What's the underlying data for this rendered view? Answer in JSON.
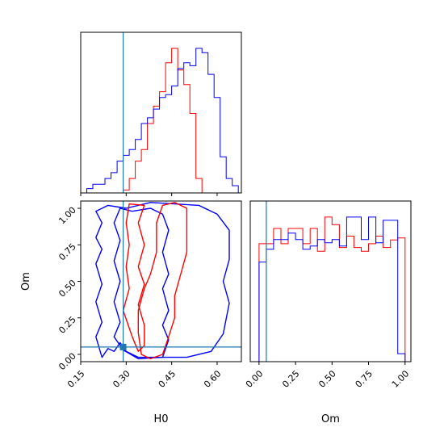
{
  "chart_data": {
    "type": "corner",
    "parameters": [
      "H0",
      "Om"
    ],
    "truth": {
      "H0": 0.29,
      "Om": 0.05
    },
    "colors": {
      "run_a": "#ff0000",
      "run_b": "#0000ff",
      "truth": "#1f77b4"
    },
    "panels": [
      {
        "id": "h0-histogram",
        "type": "histogram",
        "xlim": [
          0.15,
          0.68
        ],
        "x_edges": [
          0.15,
          0.17,
          0.19,
          0.21,
          0.23,
          0.25,
          0.27,
          0.29,
          0.31,
          0.33,
          0.35,
          0.37,
          0.39,
          0.41,
          0.43,
          0.45,
          0.47,
          0.49,
          0.51,
          0.53,
          0.55,
          0.57,
          0.59,
          0.61,
          0.63,
          0.65,
          0.67
        ],
        "series": [
          {
            "color": "#ff0000",
            "counts": [
              0,
              0,
              0,
              0,
              0,
              0,
              0,
              0.02,
              0.1,
              0.22,
              0.3,
              0.48,
              0.6,
              0.7,
              0.9,
              1.0,
              0.85,
              0.75,
              0.55,
              0.1,
              0,
              0,
              0,
              0,
              0,
              0
            ]
          },
          {
            "color": "#0000ff",
            "counts": [
              0,
              0.03,
              0.06,
              0.06,
              0.1,
              0.14,
              0.22,
              0.26,
              0.3,
              0.37,
              0.48,
              0.52,
              0.58,
              0.66,
              0.68,
              0.74,
              0.86,
              0.9,
              0.88,
              1.0,
              0.97,
              0.82,
              0.66,
              0.25,
              0.1,
              0.05
            ]
          }
        ]
      },
      {
        "id": "h0-om-contour",
        "type": "contour",
        "xlim": [
          0.15,
          0.68
        ],
        "ylim": [
          -0.05,
          1.05
        ],
        "xlabel": "H0",
        "ylabel": "Om",
        "xticks": [
          "0.15",
          "0.30",
          "0.45",
          "0.60"
        ],
        "xtick_values": [
          0.15,
          0.3,
          0.45,
          0.6
        ],
        "yticks": [
          "0.00",
          "0.25",
          "0.50",
          "0.75",
          "1.00"
        ],
        "ytick_values": [
          0.0,
          0.25,
          0.5,
          0.75,
          1.0
        ],
        "contours": [
          {
            "color": "#0000ff",
            "level": "outer",
            "points": [
              [
                0.22,
                -0.02
              ],
              [
                0.24,
                0.04
              ],
              [
                0.26,
                0.02
              ],
              [
                0.28,
                0.08
              ],
              [
                0.3,
                0.02
              ],
              [
                0.34,
                -0.02
              ],
              [
                0.42,
                -0.02
              ],
              [
                0.5,
                -0.02
              ],
              [
                0.58,
                0.02
              ],
              [
                0.62,
                0.14
              ],
              [
                0.64,
                0.35
              ],
              [
                0.62,
                0.5
              ],
              [
                0.64,
                0.65
              ],
              [
                0.64,
                0.85
              ],
              [
                0.6,
                0.96
              ],
              [
                0.54,
                1.02
              ],
              [
                0.46,
                1.03
              ],
              [
                0.38,
                1.04
              ],
              [
                0.3,
                1.0
              ],
              [
                0.24,
                1.02
              ],
              [
                0.2,
                0.98
              ],
              [
                0.22,
                0.9
              ],
              [
                0.2,
                0.8
              ],
              [
                0.22,
                0.72
              ],
              [
                0.2,
                0.62
              ],
              [
                0.22,
                0.48
              ],
              [
                0.2,
                0.36
              ],
              [
                0.22,
                0.22
              ],
              [
                0.2,
                0.12
              ],
              [
                0.22,
                -0.02
              ]
            ]
          },
          {
            "color": "#0000ff",
            "level": "inner",
            "points": [
              [
                0.29,
                0.03
              ],
              [
                0.34,
                -0.03
              ],
              [
                0.42,
                -0.02
              ],
              [
                0.44,
                0.1
              ],
              [
                0.42,
                0.2
              ],
              [
                0.44,
                0.3
              ],
              [
                0.42,
                0.45
              ],
              [
                0.44,
                0.55
              ],
              [
                0.42,
                0.7
              ],
              [
                0.44,
                0.85
              ],
              [
                0.42,
                0.96
              ],
              [
                0.38,
                1.0
              ],
              [
                0.32,
                0.98
              ],
              [
                0.28,
                1.0
              ],
              [
                0.26,
                0.9
              ],
              [
                0.28,
                0.78
              ],
              [
                0.26,
                0.64
              ],
              [
                0.28,
                0.5
              ],
              [
                0.26,
                0.36
              ],
              [
                0.28,
                0.22
              ],
              [
                0.26,
                0.12
              ],
              [
                0.29,
                0.03
              ]
            ]
          },
          {
            "color": "#ff0000",
            "level": "outer",
            "points": [
              [
                0.35,
                0.0
              ],
              [
                0.38,
                -0.03
              ],
              [
                0.42,
                0.0
              ],
              [
                0.44,
                0.12
              ],
              [
                0.46,
                0.25
              ],
              [
                0.46,
                0.4
              ],
              [
                0.48,
                0.55
              ],
              [
                0.5,
                0.7
              ],
              [
                0.5,
                0.85
              ],
              [
                0.5,
                1.0
              ],
              [
                0.46,
                1.04
              ],
              [
                0.42,
                1.02
              ],
              [
                0.4,
                0.9
              ],
              [
                0.4,
                0.7
              ],
              [
                0.38,
                0.55
              ],
              [
                0.36,
                0.45
              ],
              [
                0.34,
                0.3
              ],
              [
                0.34,
                0.15
              ],
              [
                0.35,
                0.0
              ]
            ]
          },
          {
            "color": "#ff0000",
            "level": "inner",
            "points": [
              [
                0.32,
                0.12
              ],
              [
                0.34,
                0.02
              ],
              [
                0.36,
                0.06
              ],
              [
                0.36,
                0.2
              ],
              [
                0.34,
                0.34
              ],
              [
                0.36,
                0.48
              ],
              [
                0.34,
                0.6
              ],
              [
                0.36,
                0.75
              ],
              [
                0.34,
                0.9
              ],
              [
                0.36,
                1.02
              ],
              [
                0.31,
                1.03
              ],
              [
                0.3,
                0.9
              ],
              [
                0.31,
                0.75
              ],
              [
                0.3,
                0.6
              ],
              [
                0.31,
                0.45
              ],
              [
                0.29,
                0.3
              ],
              [
                0.31,
                0.18
              ],
              [
                0.32,
                0.12
              ]
            ]
          }
        ]
      },
      {
        "id": "om-histogram",
        "type": "histogram",
        "xlim": [
          -0.06,
          1.04
        ],
        "xlabel": "Om",
        "xticks": [
          "0.00",
          "0.25",
          "0.50",
          "0.75",
          "1.00"
        ],
        "xtick_values": [
          0.0,
          0.25,
          0.5,
          0.75,
          1.0
        ],
        "x_edges": [
          -0.05,
          0.0,
          0.05,
          0.1,
          0.15,
          0.2,
          0.25,
          0.3,
          0.35,
          0.4,
          0.45,
          0.5,
          0.55,
          0.6,
          0.65,
          0.7,
          0.75,
          0.8,
          0.85,
          0.9,
          0.95,
          1.0
        ],
        "series": [
          {
            "color": "#ff0000",
            "counts": [
              0,
              0.62,
              0.62,
              0.7,
              0.62,
              0.7,
              0.7,
              0.62,
              0.7,
              0.58,
              0.76,
              0.72,
              0.6,
              0.66,
              0.6,
              0.58,
              0.62,
              0.66,
              0.6,
              0.64,
              0.65
            ]
          },
          {
            "color": "#0000ff",
            "counts": [
              0,
              0.62,
              0.7,
              0.76,
              0.76,
              0.8,
              0.76,
              0.7,
              0.72,
              0.76,
              0.74,
              0.76,
              0.72,
              0.9,
              0.9,
              0.76,
              0.9,
              0.74,
              0.88,
              0.88,
              0.05
            ]
          }
        ]
      }
    ]
  }
}
